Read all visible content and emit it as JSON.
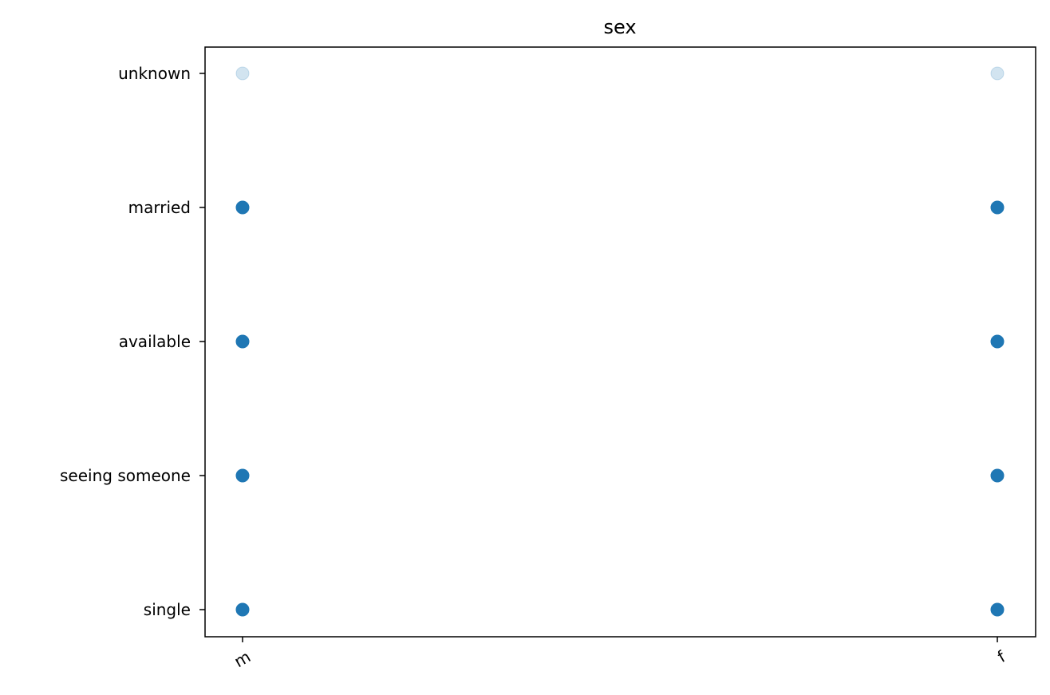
{
  "chart_data": {
    "type": "scatter",
    "title": "sex",
    "xlabel": "",
    "ylabel": "",
    "x_categories": [
      "m",
      "f"
    ],
    "y_categories": [
      "single",
      "seeing someone",
      "available",
      "married",
      "unknown"
    ],
    "x_tick_rotation_deg": 30,
    "grid": false,
    "legend": "none",
    "marker_color": "#1f77b4",
    "points": [
      {
        "x": "m",
        "y": "unknown",
        "opacity": 0.2
      },
      {
        "x": "f",
        "y": "unknown",
        "opacity": 0.2
      },
      {
        "x": "m",
        "y": "married",
        "opacity": 1
      },
      {
        "x": "f",
        "y": "married",
        "opacity": 1
      },
      {
        "x": "m",
        "y": "available",
        "opacity": 1
      },
      {
        "x": "f",
        "y": "available",
        "opacity": 1
      },
      {
        "x": "m",
        "y": "seeing someone",
        "opacity": 1
      },
      {
        "x": "f",
        "y": "seeing someone",
        "opacity": 1
      },
      {
        "x": "m",
        "y": "single",
        "opacity": 1
      },
      {
        "x": "f",
        "y": "single",
        "opacity": 1
      }
    ]
  }
}
